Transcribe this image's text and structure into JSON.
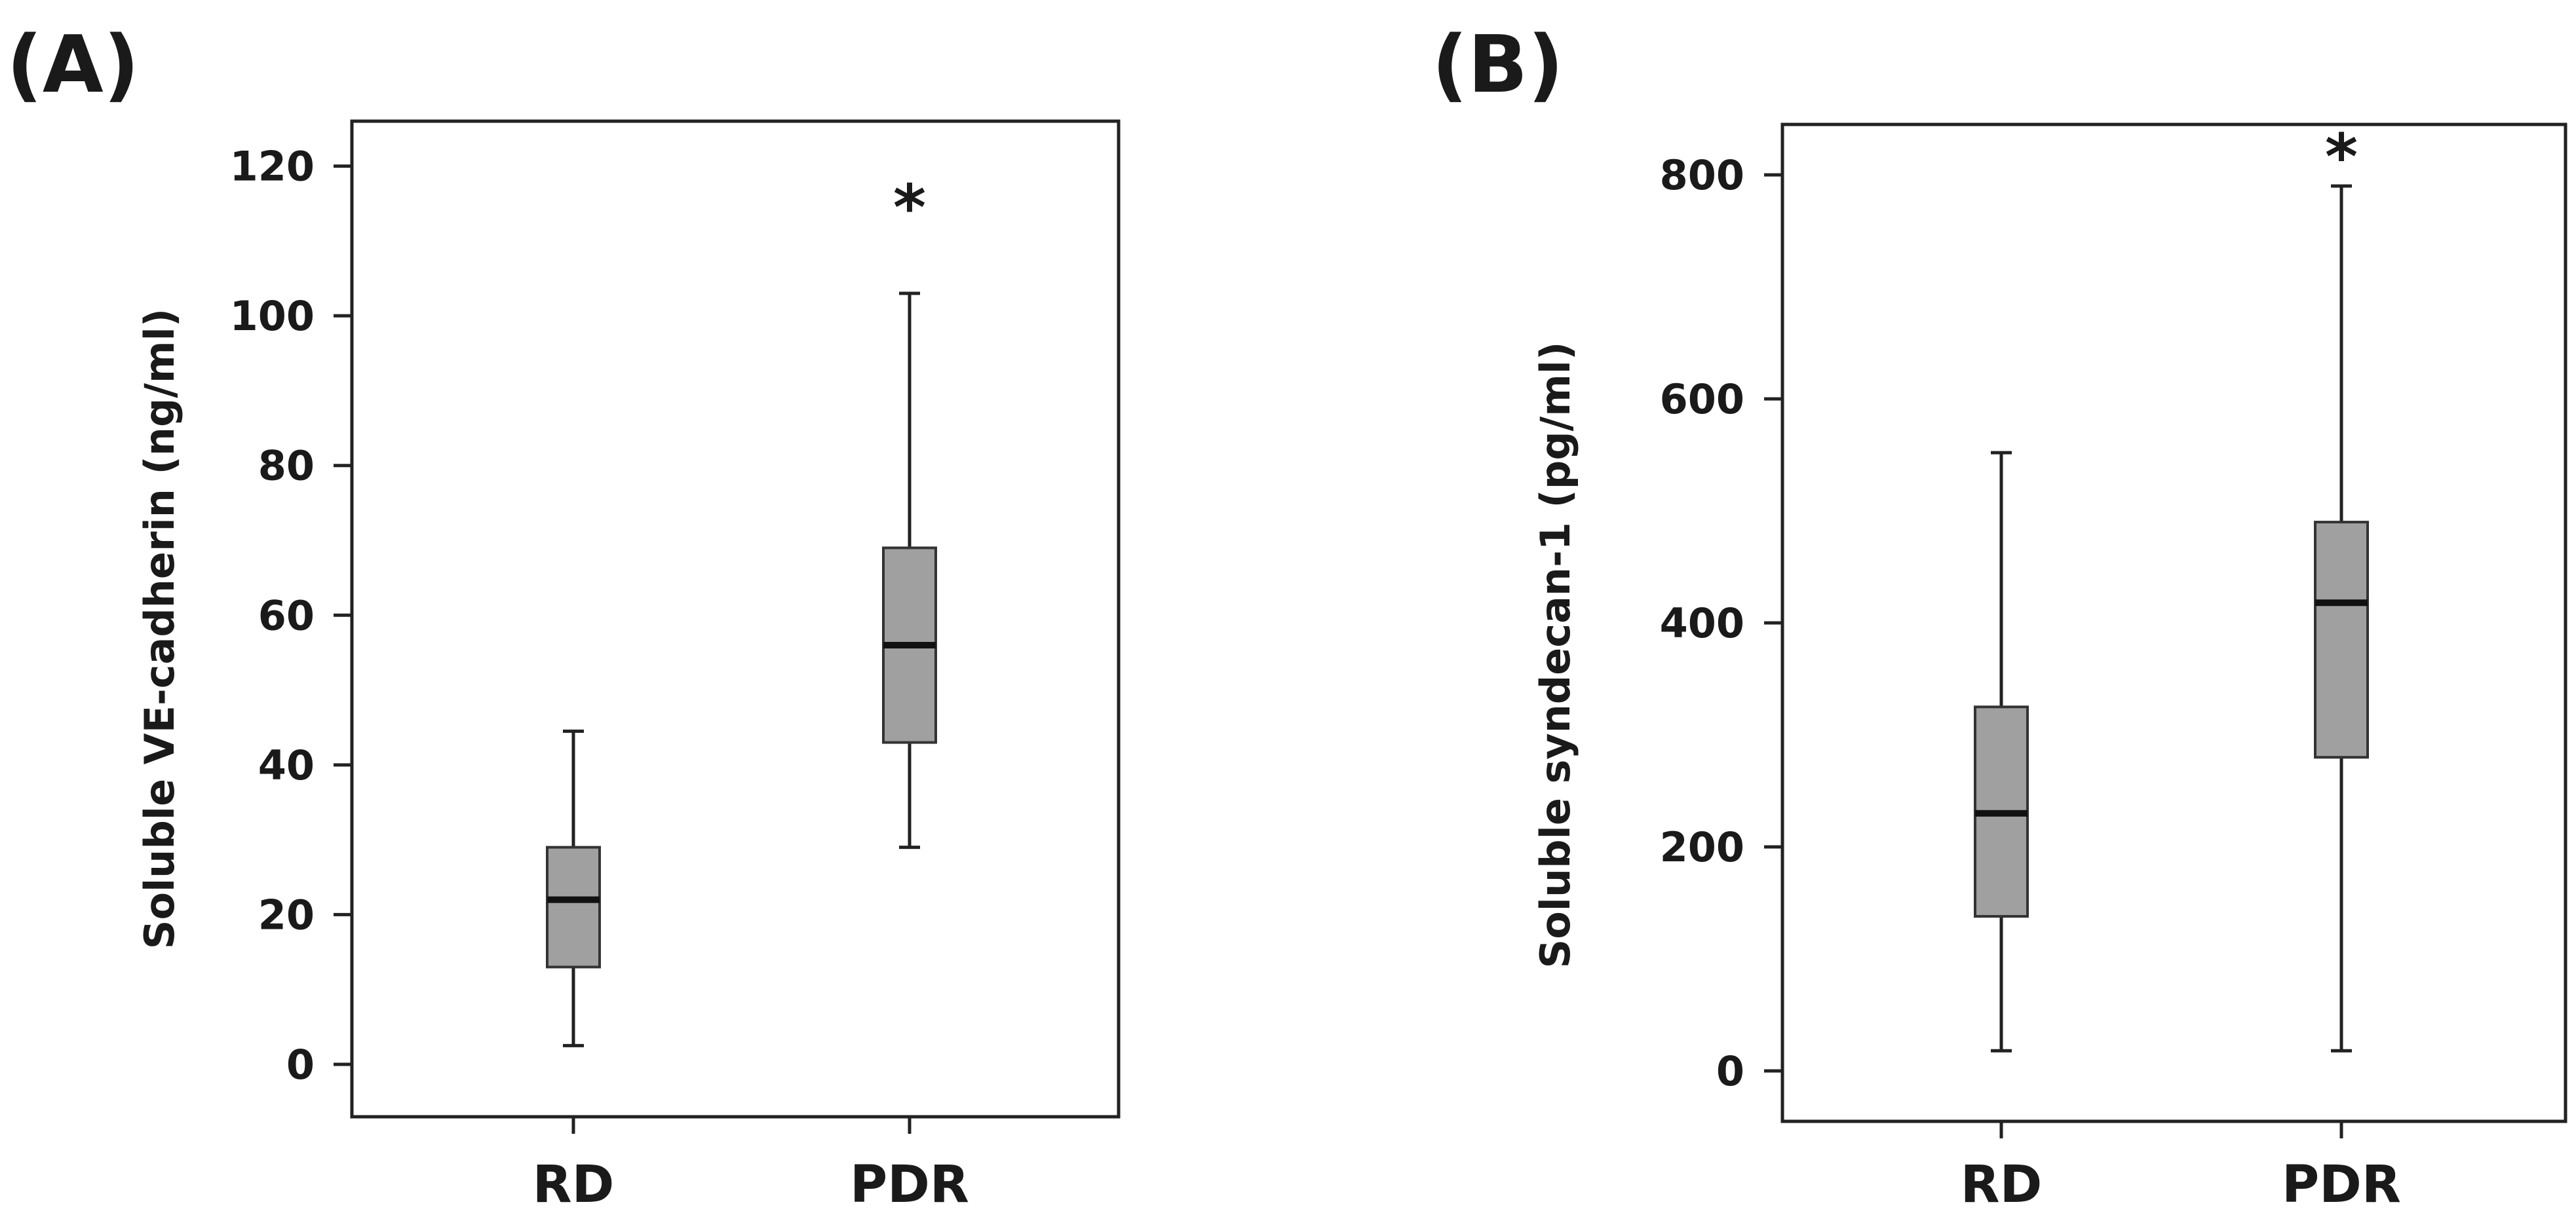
{
  "chart_data": [
    {
      "type": "box",
      "panel_label": "(A)",
      "ylabel": "Soluble VE-cadherin (ng/ml)",
      "ylim": [
        -7,
        126
      ],
      "yticks": [
        0,
        20,
        40,
        60,
        80,
        100,
        120
      ],
      "ytick_labels": [
        "0",
        "20",
        "40",
        "60",
        "80",
        "100",
        "120"
      ],
      "categories": [
        "RD",
        "PDR"
      ],
      "boxes": [
        {
          "category": "RD",
          "whisker_low": 2.5,
          "q1": 13,
          "median": 22,
          "q3": 29,
          "whisker_high": 44.5
        },
        {
          "category": "PDR",
          "whisker_low": 29,
          "q1": 43,
          "median": 56,
          "q3": 69,
          "whisker_high": 103
        }
      ],
      "annotations": [
        {
          "category": "PDR",
          "text": "*",
          "y": 115
        }
      ],
      "box_color": "#a0a0a0",
      "grid": false
    },
    {
      "type": "box",
      "panel_label": "(B)",
      "ylabel": "Soluble syndecan-1 (pg/ml)",
      "ylim": [
        -45,
        845
      ],
      "yticks": [
        0,
        200,
        400,
        600,
        800
      ],
      "ytick_labels": [
        "0",
        "200",
        "400",
        "600",
        "800"
      ],
      "categories": [
        "RD",
        "PDR"
      ],
      "boxes": [
        {
          "category": "RD",
          "whisker_low": 18,
          "q1": 138,
          "median": 230,
          "q3": 325,
          "whisker_high": 552
        },
        {
          "category": "PDR",
          "whisker_low": 18,
          "q1": 280,
          "median": 418,
          "q3": 490,
          "whisker_high": 790
        }
      ],
      "annotations": [
        {
          "category": "PDR",
          "text": "*",
          "y": 820
        }
      ],
      "box_color": "#a0a0a0",
      "grid": false
    }
  ]
}
